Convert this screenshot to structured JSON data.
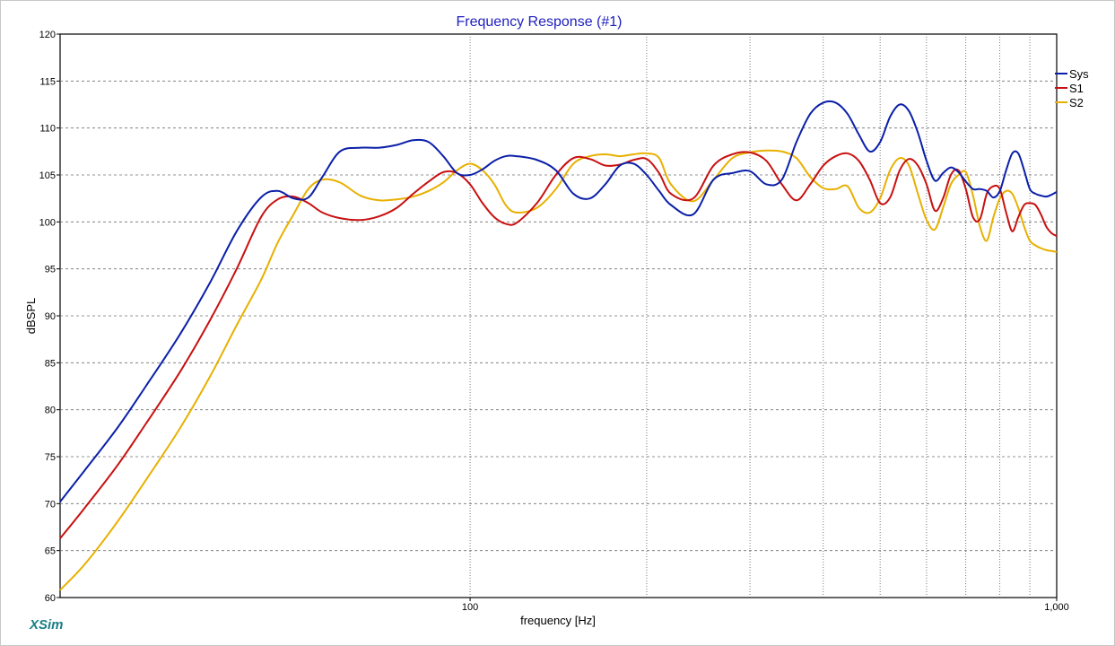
{
  "app": {
    "brand": "XSim",
    "brand_color": "#1b7f86"
  },
  "chart_data": {
    "type": "line",
    "title": "Frequency Response (#1)",
    "title_color": "#2020c0",
    "xlabel": "frequency [Hz]",
    "ylabel": "dBSPL",
    "x_scale": "log",
    "xlim": [
      20,
      1000
    ],
    "ylim": [
      60,
      120
    ],
    "y_ticks": [
      60,
      65,
      70,
      75,
      80,
      85,
      90,
      95,
      100,
      105,
      110,
      115,
      120
    ],
    "x_tick_labels": [
      {
        "value": 100,
        "label": "100"
      },
      {
        "value": 1000,
        "label": "1,000"
      }
    ],
    "x_gridlines": [
      100,
      200,
      300,
      400,
      500,
      600,
      700,
      800,
      900,
      1000
    ],
    "grid": true,
    "legend_position": "right",
    "series": [
      {
        "name": "Sys",
        "color": "#0a1fa8",
        "x": [
          20,
          22,
          25,
          28,
          32,
          36,
          40,
          44,
          47,
          50,
          53,
          56,
          60,
          65,
          70,
          75,
          80,
          85,
          90,
          95,
          100,
          105,
          110,
          115,
          120,
          130,
          140,
          150,
          160,
          170,
          180,
          190,
          200,
          210,
          220,
          240,
          260,
          280,
          300,
          320,
          340,
          360,
          380,
          400,
          420,
          440,
          460,
          480,
          500,
          520,
          540,
          560,
          580,
          600,
          620,
          640,
          660,
          680,
          700,
          720,
          740,
          760,
          780,
          800,
          820,
          840,
          860,
          880,
          900,
          920,
          940,
          960,
          980,
          1000
        ],
        "y": [
          70.2,
          73.5,
          78,
          82.5,
          88,
          93.5,
          99,
          102.6,
          103.3,
          102.5,
          102.6,
          104.8,
          107.5,
          107.9,
          107.9,
          108.2,
          108.7,
          108.5,
          107,
          105.2,
          105,
          105.6,
          106.5,
          107,
          107,
          106.6,
          105.5,
          103,
          102.5,
          104,
          106,
          106.2,
          105,
          103.3,
          101.8,
          100.8,
          104.5,
          105.2,
          105.4,
          104,
          104.5,
          108.5,
          111.5,
          112.7,
          112.7,
          111.5,
          109.3,
          107.5,
          108.5,
          111.2,
          112.5,
          111.8,
          109.5,
          106.5,
          104.4,
          105.2,
          105.8,
          105.3,
          104.3,
          103.5,
          103.5,
          103.3,
          102.6,
          103.3,
          105.5,
          107.3,
          107.3,
          105.5,
          103.5,
          103,
          102.8,
          102.7,
          102.9,
          103.2
        ]
      },
      {
        "name": "S1",
        "color": "#c81010",
        "x": [
          20,
          22,
          25,
          28,
          32,
          36,
          40,
          44,
          47,
          50,
          53,
          56,
          60,
          65,
          70,
          75,
          80,
          85,
          90,
          95,
          100,
          105,
          110,
          115,
          120,
          130,
          140,
          150,
          160,
          170,
          180,
          190,
          200,
          210,
          220,
          240,
          260,
          280,
          300,
          320,
          340,
          360,
          380,
          400,
          420,
          440,
          460,
          480,
          500,
          520,
          540,
          560,
          580,
          600,
          620,
          640,
          660,
          680,
          700,
          720,
          740,
          760,
          780,
          800,
          820,
          840,
          860,
          880,
          900,
          920,
          940,
          960,
          980,
          1000
        ],
        "y": [
          66.3,
          69.5,
          74,
          78.5,
          84,
          89.5,
          95,
          100.5,
          102.4,
          102.7,
          102,
          101,
          100.4,
          100.2,
          100.6,
          101.5,
          103,
          104.3,
          105.3,
          105.2,
          104,
          102,
          100.5,
          99.8,
          99.9,
          102,
          105,
          106.8,
          106.7,
          106,
          106.1,
          106.6,
          106.7,
          105.2,
          103,
          102.5,
          106,
          107.2,
          107.4,
          106.5,
          104,
          102.3,
          104,
          106,
          107,
          107.3,
          106.5,
          104.5,
          102,
          102.6,
          105.5,
          106.7,
          106,
          104,
          101.2,
          102.5,
          105,
          105.5,
          103.5,
          100.5,
          100.3,
          103,
          103.8,
          103.5,
          101,
          99,
          100.5,
          101.8,
          102,
          101.8,
          100.8,
          99.5,
          98.8,
          98.5
        ]
      },
      {
        "name": "S2",
        "color": "#e8b000",
        "x": [
          20,
          22,
          25,
          28,
          32,
          36,
          40,
          44,
          47,
          50,
          53,
          56,
          60,
          65,
          70,
          75,
          80,
          85,
          90,
          95,
          100,
          105,
          110,
          115,
          120,
          130,
          140,
          150,
          160,
          170,
          180,
          190,
          200,
          210,
          220,
          240,
          260,
          280,
          300,
          320,
          340,
          360,
          380,
          400,
          420,
          440,
          460,
          480,
          500,
          520,
          540,
          560,
          580,
          600,
          620,
          640,
          660,
          680,
          700,
          720,
          740,
          760,
          780,
          800,
          820,
          840,
          860,
          880,
          900,
          920,
          940,
          960,
          980,
          1000
        ],
        "y": [
          60.8,
          63.5,
          68,
          72.5,
          78,
          83.5,
          89,
          93.8,
          97.8,
          100.8,
          103.5,
          104.5,
          104.2,
          102.8,
          102.3,
          102.4,
          102.7,
          103.3,
          104.2,
          105.5,
          106.2,
          105.5,
          104,
          101.8,
          101,
          101.5,
          103.5,
          106.2,
          107,
          107.2,
          107,
          107.2,
          107.3,
          106.8,
          104,
          102.2,
          104.5,
          106.8,
          107.4,
          107.6,
          107.5,
          106.8,
          104.8,
          103.6,
          103.5,
          103.8,
          101.5,
          101,
          102.5,
          105.5,
          106.8,
          106,
          103,
          100.2,
          99.2,
          101.5,
          104,
          105,
          105.3,
          102.8,
          99.5,
          98,
          100.5,
          102.5,
          103.3,
          103,
          101.5,
          99.5,
          98,
          97.5,
          97.2,
          97,
          96.9,
          96.8
        ]
      }
    ]
  }
}
